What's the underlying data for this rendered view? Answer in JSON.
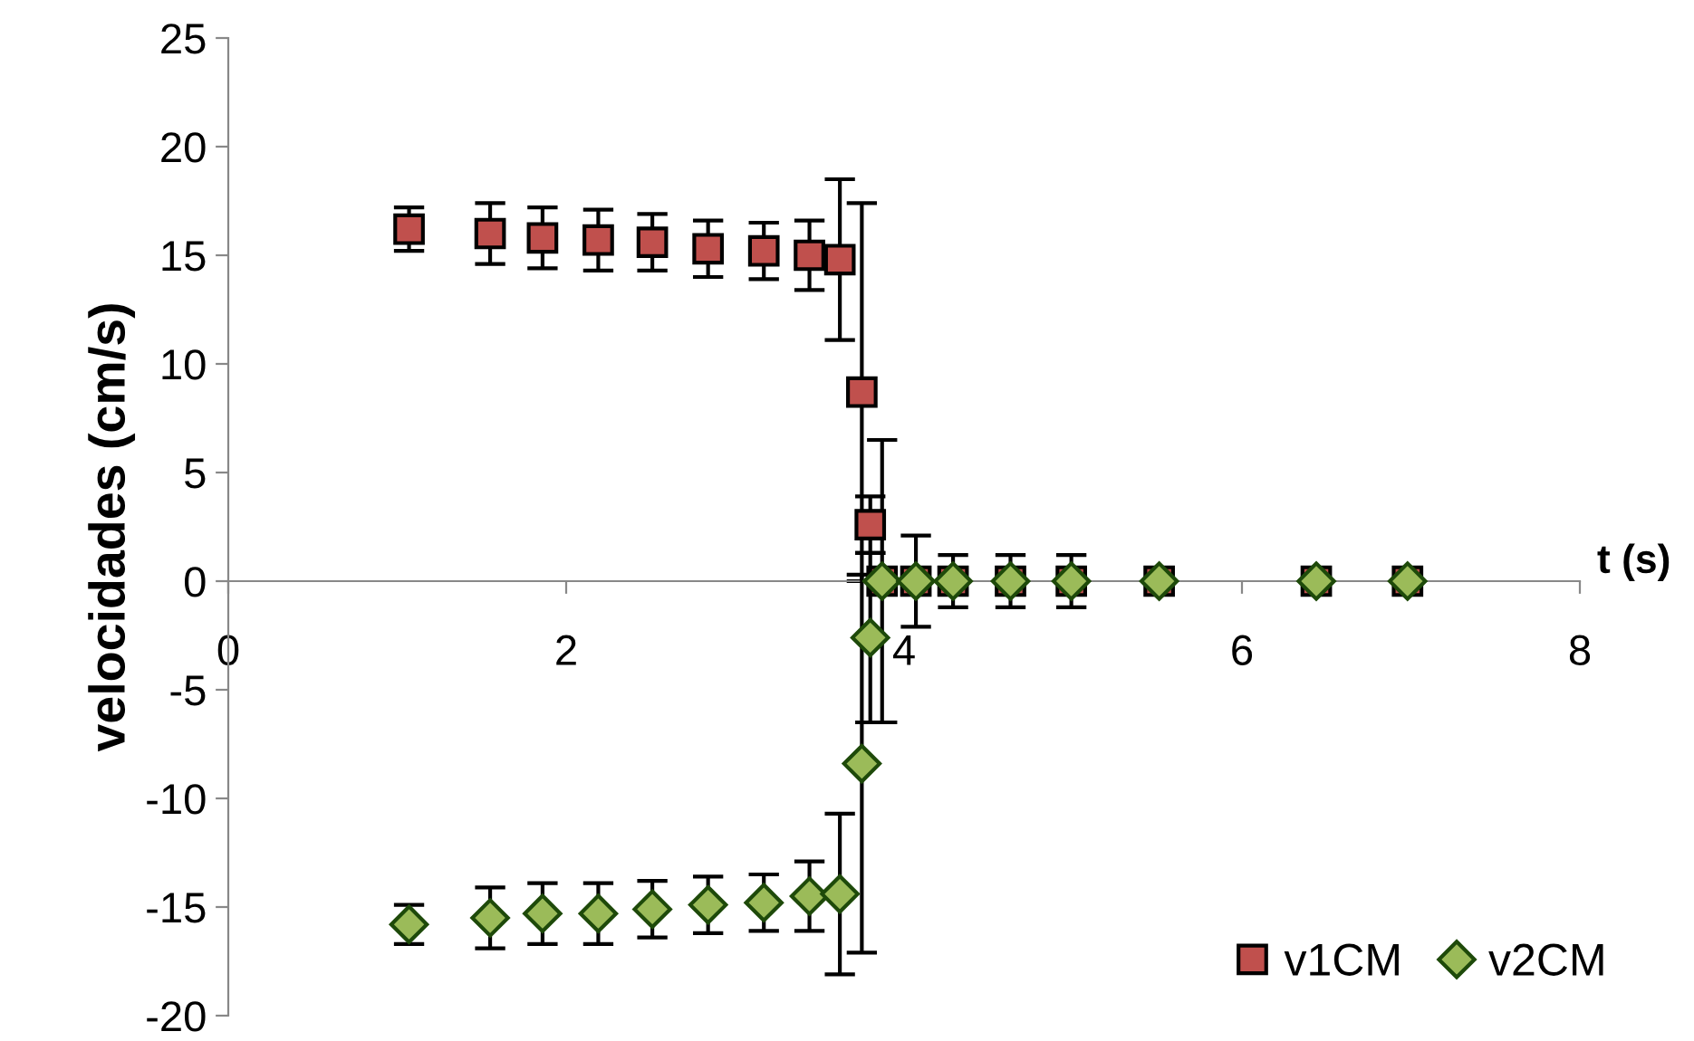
{
  "chart_data": {
    "type": "scatter",
    "xlabel": "t (s)",
    "ylabel": "velocidades (cm/s)",
    "xlim": [
      0,
      8
    ],
    "ylim": [
      -20,
      25
    ],
    "xticks": [
      0,
      2,
      4,
      6,
      8
    ],
    "yticks": [
      -20,
      -15,
      -10,
      -5,
      0,
      5,
      10,
      15,
      20,
      25
    ],
    "grid": false,
    "legend": "bottom right",
    "series": [
      {
        "name": "v1CM",
        "color": "#c0504d",
        "marker": "square",
        "x": [
          1.07,
          1.55,
          1.86,
          2.19,
          2.51,
          2.84,
          3.17,
          3.44,
          3.62,
          3.75,
          3.8,
          3.87,
          4.07,
          4.29,
          4.63,
          4.99,
          5.51,
          6.44,
          6.98
        ],
        "values": [
          16.2,
          16.0,
          15.8,
          15.7,
          15.6,
          15.3,
          15.2,
          15.0,
          14.8,
          8.7,
          2.6,
          0,
          0,
          0,
          0,
          0,
          0,
          0,
          0
        ],
        "errors": [
          1.0,
          1.4,
          1.4,
          1.4,
          1.3,
          1.3,
          1.3,
          1.6,
          3.7,
          8.7,
          1.3,
          6.5,
          2.1,
          1.2,
          1.2,
          1.2,
          null,
          null,
          null
        ]
      },
      {
        "name": "v2CM",
        "color": "#9bbb59",
        "marker": "diamond",
        "x": [
          1.07,
          1.55,
          1.86,
          2.19,
          2.51,
          2.84,
          3.17,
          3.44,
          3.62,
          3.75,
          3.8,
          3.87,
          4.07,
          4.29,
          4.63,
          4.99,
          5.51,
          6.44,
          6.98
        ],
        "values": [
          -15.8,
          -15.5,
          -15.3,
          -15.3,
          -15.1,
          -14.9,
          -14.8,
          -14.5,
          -14.4,
          -8.4,
          -2.6,
          0,
          0,
          0,
          0,
          0,
          0,
          0,
          0
        ],
        "errors": [
          0.9,
          1.4,
          1.4,
          1.4,
          1.3,
          1.3,
          1.3,
          1.6,
          3.7,
          8.7,
          3.9,
          null,
          null,
          null,
          null,
          null,
          null,
          null,
          null
        ]
      }
    ]
  }
}
